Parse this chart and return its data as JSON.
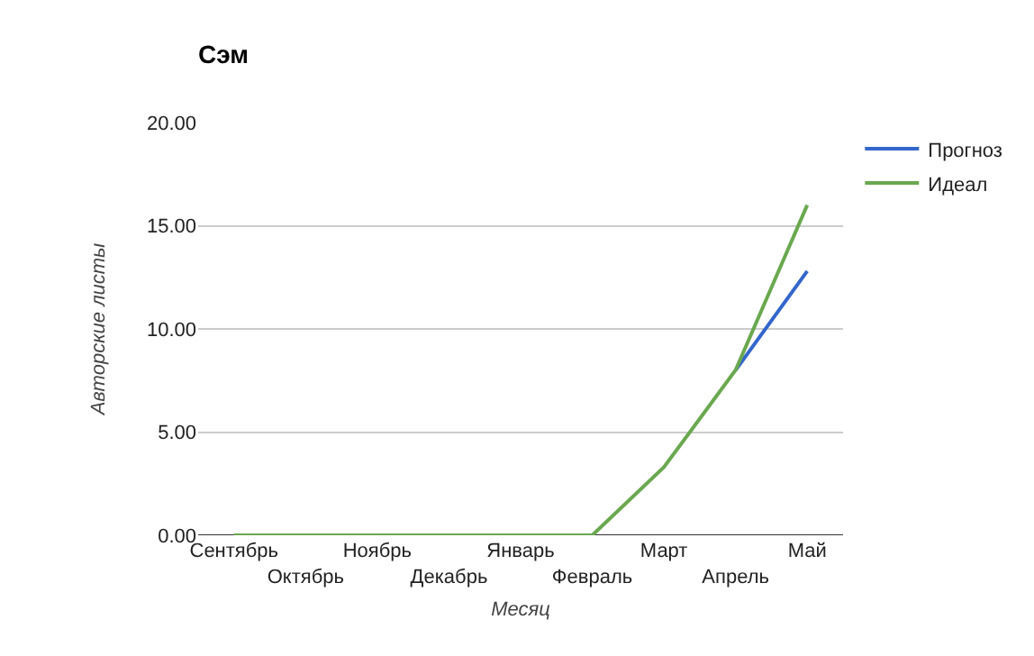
{
  "chart_data": {
    "type": "line",
    "title": "Сэм",
    "xlabel": "Месяц",
    "ylabel": "Авторские листы",
    "categories": [
      "Сентябрь",
      "Октябрь",
      "Ноябрь",
      "Декабрь",
      "Январь",
      "Февраль",
      "Март",
      "Апрель",
      "Май"
    ],
    "series": [
      {
        "name": "Прогноз",
        "color": "#3366cc",
        "values": [
          null,
          null,
          null,
          null,
          null,
          null,
          null,
          8.0,
          12.8
        ]
      },
      {
        "name": "Идеал",
        "color": "#6aa84f",
        "values": [
          0,
          0,
          0,
          0,
          0,
          0,
          3.3,
          8.0,
          16.0
        ]
      }
    ],
    "ylim": [
      0,
      20
    ],
    "yticks": [
      {
        "value": 0,
        "label": "0.00"
      },
      {
        "value": 5,
        "label": "5.00"
      },
      {
        "value": 10,
        "label": "10.00"
      },
      {
        "value": 15,
        "label": "15.00"
      },
      {
        "value": 20,
        "label": "20.00"
      }
    ],
    "grid": "y",
    "legend": "top right",
    "marker": "none",
    "line_style": "solid"
  }
}
